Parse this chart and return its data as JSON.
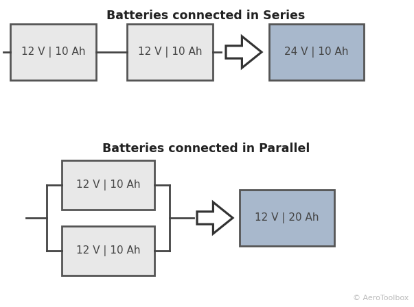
{
  "bg_color": "#ffffff",
  "title_series": "Batteries connected in Series",
  "title_parallel": "Batteries connected in Parallel",
  "battery_light_color": "#e8e8e8",
  "battery_light_stroke": "#555555",
  "battery_result_color": "#a8b8cc",
  "battery_result_stroke": "#555555",
  "text_color": "#444444",
  "title_color": "#222222",
  "arrow_fill": "#ffffff",
  "arrow_stroke": "#333333",
  "watermark": "© AeroToolbox",
  "watermark_color": "#bbbbbb",
  "series_bat1_label": "12 V | 10 Ah",
  "series_bat2_label": "12 V | 10 Ah",
  "series_result_label": "24 V | 10 Ah",
  "parallel_bat1_label": "12 V | 10 Ah",
  "parallel_bat2_label": "12 V | 10 Ah",
  "parallel_result_label": "12 V | 20 Ah",
  "line_width": 2.0,
  "line_color": "#444444"
}
